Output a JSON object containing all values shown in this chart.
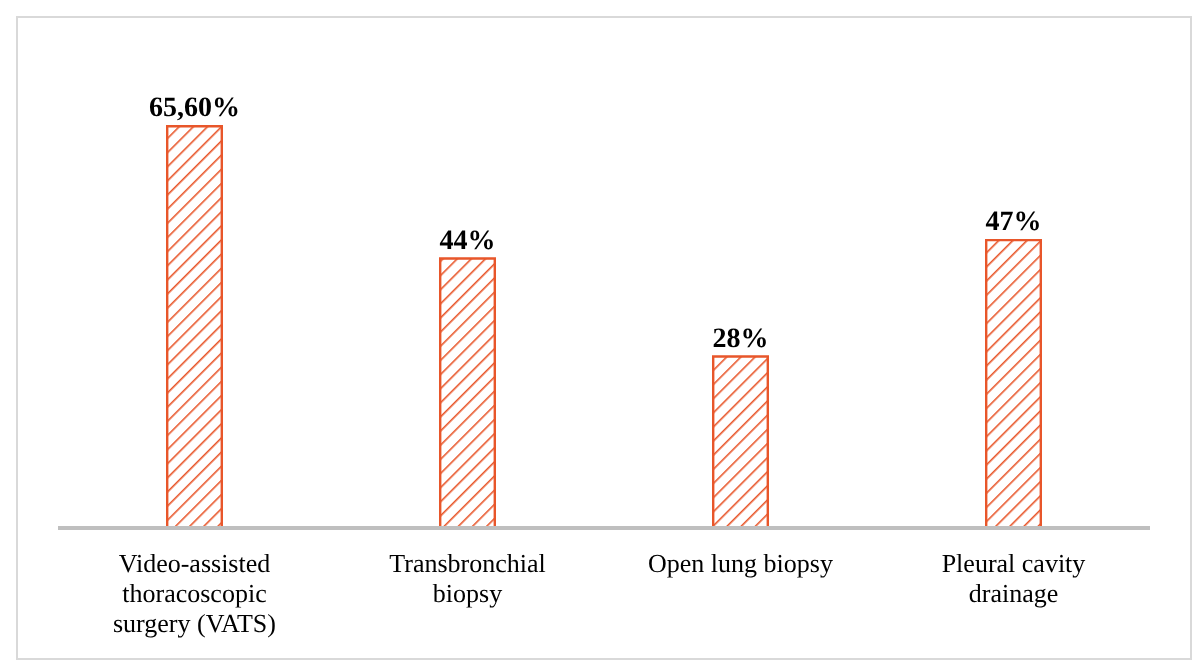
{
  "chart_data": {
    "type": "bar",
    "categories": [
      "Video-assisted thoracoscopic surgery (VATS)",
      "Transbronchial biopsy",
      "Open lung biopsy",
      "Pleural cavity drainage"
    ],
    "values": [
      65.6,
      44,
      28,
      47
    ],
    "value_labels": [
      "65,60%",
      "44%",
      "28%",
      "47%"
    ],
    "color": "#e8562a"
  }
}
